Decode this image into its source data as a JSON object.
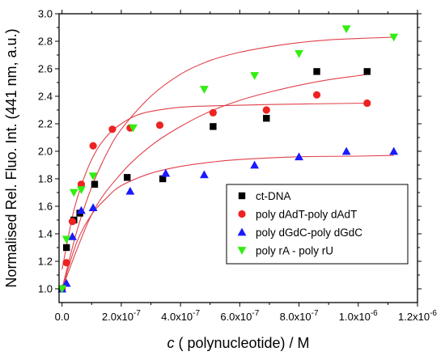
{
  "chart_data": {
    "type": "scatter",
    "xlabel_var": "c",
    "xlabel_rest": " ( polynucleotide) / M",
    "ylabel": "Normalised Rel. Fluo. Int. (441 nm, a.u.)",
    "xlim": [
      -1e-08,
      1.2e-06
    ],
    "ylim": [
      0.9,
      3.0
    ],
    "x_ticks": [
      0,
      2e-07,
      4e-07,
      6e-07,
      8e-07,
      1e-06,
      1.2e-06
    ],
    "x_tick_labels": [
      {
        "base": "0.0",
        "exp": ""
      },
      {
        "base": "2.0x10",
        "exp": "-7"
      },
      {
        "base": "4.0x10",
        "exp": "-7"
      },
      {
        "base": "6.0x10",
        "exp": "-7"
      },
      {
        "base": "8.0x10",
        "exp": "-7"
      },
      {
        "base": "1.0x10",
        "exp": "-6"
      },
      {
        "base": "1.2x10",
        "exp": "-6"
      }
    ],
    "y_ticks": [
      1.0,
      1.2,
      1.4,
      1.6,
      1.8,
      2.0,
      2.2,
      2.4,
      2.6,
      2.8,
      3.0
    ],
    "y_tick_labels": [
      "1.0",
      "1.2",
      "1.4",
      "1.6",
      "1.8",
      "2.0",
      "2.2",
      "2.4",
      "2.6",
      "2.8",
      "3.0"
    ],
    "legend_position": "center-right",
    "fit_line_color": "#e0404a",
    "series": [
      {
        "name": "ct-DNA",
        "marker": "square",
        "color": "#000000",
        "points": [
          [
            0,
            1.0
          ],
          [
            1.5e-08,
            1.3
          ],
          [
            4e-08,
            1.5
          ],
          [
            6e-08,
            1.55
          ],
          [
            1.1e-07,
            1.76
          ],
          [
            2.2e-07,
            1.81
          ],
          [
            3.4e-07,
            1.8
          ],
          [
            5.1e-07,
            2.18
          ],
          [
            6.9e-07,
            2.24
          ],
          [
            8.6e-07,
            2.58
          ],
          [
            1.03e-06,
            2.58
          ]
        ],
        "fit": [
          [
            0,
            1.0
          ],
          [
            1e-07,
            1.54
          ],
          [
            2e-07,
            1.84
          ],
          [
            3e-07,
            2.04
          ],
          [
            4e-07,
            2.18
          ],
          [
            5e-07,
            2.29
          ],
          [
            6e-07,
            2.37
          ],
          [
            7e-07,
            2.43
          ],
          [
            8e-07,
            2.48
          ],
          [
            9e-07,
            2.52
          ],
          [
            1e-06,
            2.55
          ],
          [
            1.03e-06,
            2.56
          ]
        ]
      },
      {
        "name": "poly dAdT-poly dAdT",
        "marker": "circle",
        "color": "#ee2222",
        "points": [
          [
            0,
            1.0
          ],
          [
            1.5e-08,
            1.19
          ],
          [
            3.5e-08,
            1.49
          ],
          [
            6.5e-08,
            1.76
          ],
          [
            1.05e-07,
            2.04
          ],
          [
            1.7e-07,
            2.16
          ],
          [
            2.3e-07,
            2.17
          ],
          [
            3.3e-07,
            2.19
          ],
          [
            5.1e-07,
            2.28
          ],
          [
            6.9e-07,
            2.3
          ],
          [
            8.6e-07,
            2.41
          ],
          [
            1.03e-06,
            2.35
          ]
        ],
        "fit": [
          [
            0,
            1.14
          ],
          [
            4e-08,
            1.57
          ],
          [
            8e-08,
            1.84
          ],
          [
            1.2e-07,
            2.02
          ],
          [
            1.6e-07,
            2.13
          ],
          [
            2e-07,
            2.2
          ],
          [
            2.5e-07,
            2.26
          ],
          [
            3e-07,
            2.29
          ],
          [
            4e-07,
            2.32
          ],
          [
            5e-07,
            2.33
          ],
          [
            7e-07,
            2.34
          ],
          [
            1.03e-06,
            2.35
          ]
        ]
      },
      {
        "name": "poly dGdC-poly dGdC",
        "marker": "triangle-up",
        "color": "#1a1aff",
        "points": [
          [
            0,
            1.0
          ],
          [
            1.5e-08,
            1.04
          ],
          [
            3.5e-08,
            1.38
          ],
          [
            6.5e-08,
            1.57
          ],
          [
            1.05e-07,
            1.59
          ],
          [
            2.3e-07,
            1.71
          ],
          [
            3.5e-07,
            1.84
          ],
          [
            4.8e-07,
            1.83
          ],
          [
            6.5e-07,
            1.9
          ],
          [
            8e-07,
            1.96
          ],
          [
            9.6e-07,
            2.0
          ],
          [
            1.12e-06,
            2.0
          ]
        ],
        "fit": [
          [
            0,
            1.0
          ],
          [
            5e-08,
            1.34
          ],
          [
            1e-07,
            1.54
          ],
          [
            1.5e-07,
            1.66
          ],
          [
            2e-07,
            1.75
          ],
          [
            3e-07,
            1.84
          ],
          [
            4e-07,
            1.89
          ],
          [
            5e-07,
            1.92
          ],
          [
            6e-07,
            1.94
          ],
          [
            8e-07,
            1.96
          ],
          [
            1e-06,
            1.965
          ],
          [
            1.12e-06,
            1.97
          ]
        ]
      },
      {
        "name": "poly rA - poly rU",
        "marker": "triangle-down",
        "color": "#33ee11",
        "points": [
          [
            0,
            1.0
          ],
          [
            1.5e-08,
            1.36
          ],
          [
            4e-08,
            1.7
          ],
          [
            6.5e-08,
            1.72
          ],
          [
            1.05e-07,
            1.82
          ],
          [
            2.4e-07,
            2.17
          ],
          [
            4.8e-07,
            2.45
          ],
          [
            6.5e-07,
            2.55
          ],
          [
            8e-07,
            2.71
          ],
          [
            9.6e-07,
            2.89
          ],
          [
            1.12e-06,
            2.83
          ]
        ],
        "fit": [
          [
            0,
            1.0
          ],
          [
            5e-08,
            1.42
          ],
          [
            1e-07,
            1.74
          ],
          [
            1.5e-07,
            1.98
          ],
          [
            2e-07,
            2.16
          ],
          [
            3e-07,
            2.4
          ],
          [
            4e-07,
            2.56
          ],
          [
            5e-07,
            2.66
          ],
          [
            6e-07,
            2.72
          ],
          [
            7e-07,
            2.76
          ],
          [
            8e-07,
            2.79
          ],
          [
            9e-07,
            2.81
          ],
          [
            1e-06,
            2.82
          ],
          [
            1.12e-06,
            2.83
          ]
        ]
      }
    ]
  }
}
